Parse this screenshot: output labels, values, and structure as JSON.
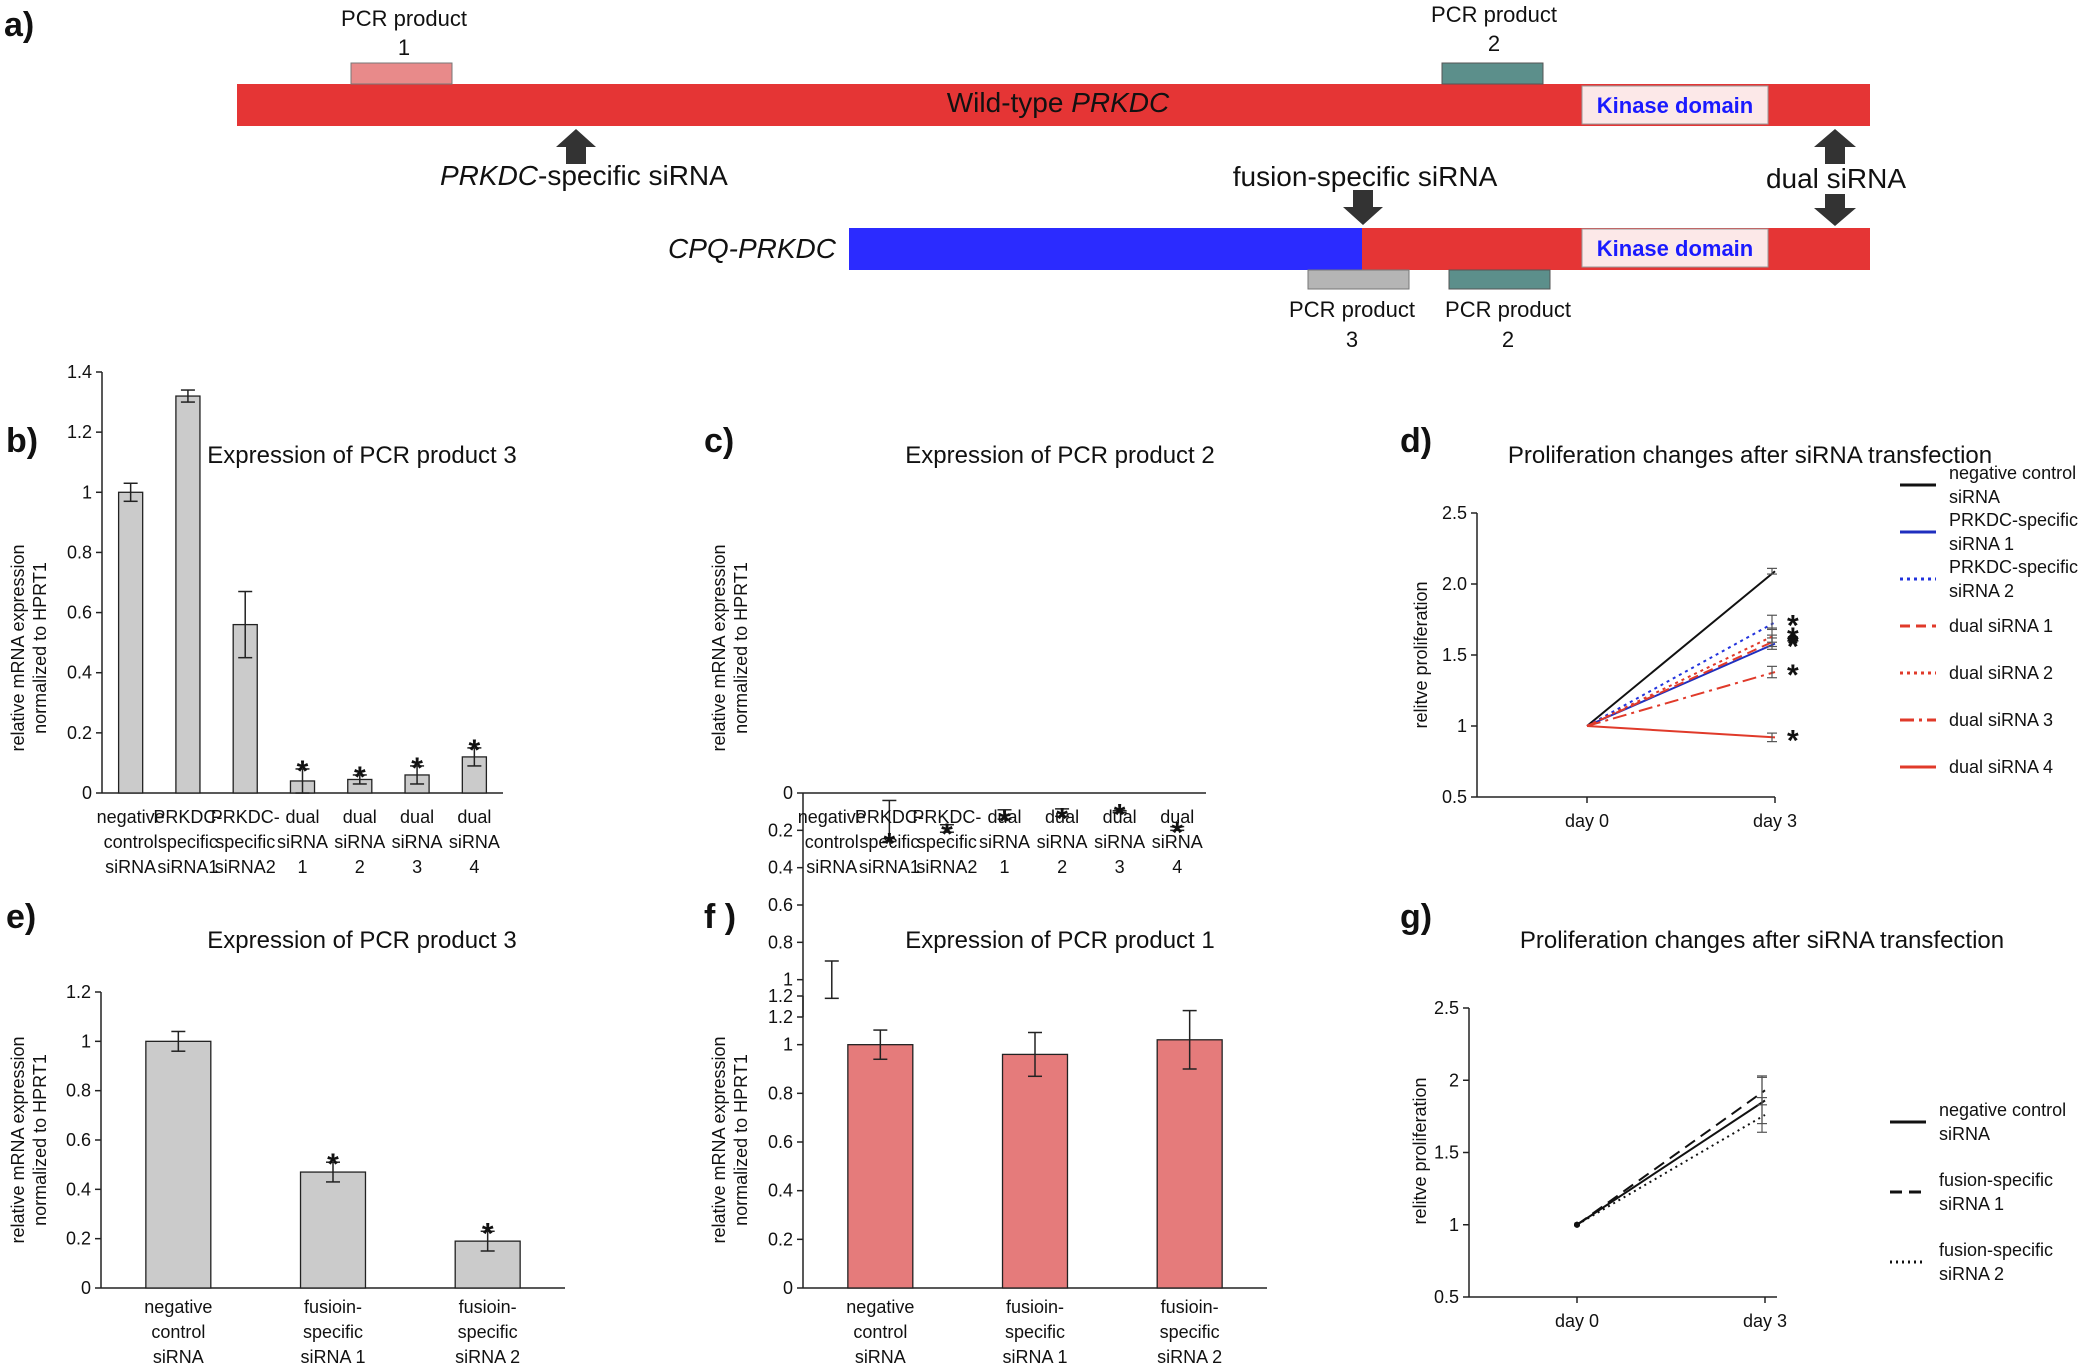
{
  "panel_a": {
    "label": "a)",
    "wildtype_pre": "Wild-type ",
    "wildtype_gene": "PRKDC",
    "fusion_name": "CPQ-PRKDC",
    "kinase_label": "Kinase domain",
    "prkdc_sirna_gene": "PRKDC",
    "prkdc_sirna_rest": "-specific siRNA",
    "fusion_sirna": "fusion-specific siRNA",
    "dual_sirna": "dual siRNA",
    "pcr1": [
      "PCR product",
      "1"
    ],
    "pcr2_top": [
      "PCR product",
      "2"
    ],
    "pcr3": [
      "PCR product",
      "3"
    ],
    "pcr2_bottom": [
      "PCR product",
      "2"
    ],
    "colors": {
      "wildtype": "#e53535",
      "fusion": "#2b2bff",
      "kinase_fill": "#fce8e8",
      "pcr1": "#e88a8a",
      "pcr2": "#5c8f8b",
      "pcr3": "#b5b5b5"
    }
  },
  "chart_data": [
    {
      "panel": "b)",
      "type": "bar",
      "title": "Expression of PCR product 3",
      "ylabel": [
        "relative mRNA expression",
        "normalized to HPRT1"
      ],
      "ylim": [
        0,
        1.4
      ],
      "yticks": [
        "0",
        "0.2",
        "0.4",
        "0.6",
        "0.8",
        "1",
        "1.2",
        "1.4"
      ],
      "color": "#cbcbcb",
      "categories": [
        [
          "negative",
          "control",
          "siRNA"
        ],
        [
          "PRKDC-",
          "specific",
          "siRNA1"
        ],
        [
          "PRKDC-",
          "specific",
          "siRNA2"
        ],
        [
          "dual",
          "siRNA",
          "1"
        ],
        [
          "dual",
          "siRNA",
          "2"
        ],
        [
          "dual",
          "siRNA",
          "3"
        ],
        [
          "dual",
          "siRNA",
          "4"
        ]
      ],
      "values": [
        1.0,
        1.32,
        0.56,
        0.04,
        0.045,
        0.06,
        0.12
      ],
      "errors": [
        0.03,
        0.02,
        0.11,
        0.04,
        0.015,
        0.03,
        0.03
      ],
      "significant": [
        false,
        false,
        false,
        true,
        true,
        true,
        true
      ],
      "star": "*"
    },
    {
      "panel": "c)",
      "type": "bar",
      "title": "Expression of  PCR product 2",
      "ylabel": [
        "relative mRNA expression",
        "normalized to HPRT1"
      ],
      "ylim": [
        0,
        1.2
      ],
      "yticks": [
        "0",
        "0.2",
        "0.4",
        "0.6",
        "0.8",
        "1",
        "1.2"
      ],
      "color": "#4a7d79",
      "categories": [
        [
          "negative",
          "control",
          "siRNA"
        ],
        [
          "PRKDC-",
          "specific",
          "siRNA1"
        ],
        [
          "PRKDC-",
          "specific",
          "siRNA2"
        ],
        [
          "dual",
          "siRNA",
          "1"
        ],
        [
          "dual",
          "siRNA",
          "2"
        ],
        [
          "dual",
          "siRNA",
          "3"
        ],
        [
          "dual",
          "siRNA",
          "4"
        ]
      ],
      "values": [
        1.0,
        0.15,
        0.19,
        0.115,
        0.105,
        0.1,
        0.19
      ],
      "errors": [
        0.1,
        0.11,
        0.02,
        0.025,
        0.02,
        0.005,
        0.01
      ],
      "significant": [
        false,
        true,
        true,
        true,
        true,
        true,
        true
      ],
      "star": "*"
    },
    {
      "panel": "d)",
      "type": "line",
      "title": "Proliferation changes after siRNA transfection",
      "ylabel": "relitve proliferation",
      "ylim": [
        0.5,
        2.5
      ],
      "yticks": [
        "0.5",
        "1",
        "1.5",
        "2.0",
        "2.5"
      ],
      "x": [
        "day 0",
        "day 3"
      ],
      "star": "*",
      "series": [
        {
          "name": [
            "negative control",
            "siRNA"
          ],
          "values": [
            1.0,
            2.09
          ],
          "err3": 0.02,
          "color": "#111111",
          "dash": "",
          "star": false
        },
        {
          "name": [
            "PRKDC-specific",
            "siRNA 1"
          ],
          "values": [
            1.0,
            1.58
          ],
          "err3": 0.04,
          "color": "#1f2fbf",
          "dash": "",
          "star": true
        },
        {
          "name": [
            "PRKDC-specific",
            "siRNA 2"
          ],
          "values": [
            1.0,
            1.73
          ],
          "err3": 0.05,
          "color": "#2233dd",
          "dash": "3 4",
          "star": true
        },
        {
          "name": [
            "dual siRNA 1"
          ],
          "values": [
            1.0,
            1.6
          ],
          "err3": 0.04,
          "color": "#e03a2a",
          "dash": "10 6",
          "star": true
        },
        {
          "name": [
            "dual siRNA 2"
          ],
          "values": [
            1.0,
            1.64
          ],
          "err3": 0.05,
          "color": "#e03a2a",
          "dash": "3 4",
          "star": true
        },
        {
          "name": [
            "dual siRNA 3"
          ],
          "values": [
            1.0,
            1.38
          ],
          "err3": 0.04,
          "color": "#e03a2a",
          "dash": "14 5 3 5",
          "star": true
        },
        {
          "name": [
            "dual siRNA 4"
          ],
          "values": [
            1.0,
            0.92
          ],
          "err3": 0.03,
          "color": "#e03a2a",
          "dash": "",
          "star": true
        }
      ]
    },
    {
      "panel": "e)",
      "type": "bar",
      "title": "Expression of PCR product 3",
      "ylabel": [
        "relative mRNA expression",
        "normalized to HPRT1"
      ],
      "ylim": [
        0,
        1.2
      ],
      "yticks": [
        "0",
        "0.2",
        "0.4",
        "0.6",
        "0.8",
        "1",
        "1.2"
      ],
      "color": "#cbcbcb",
      "categories": [
        [
          "negative",
          "control",
          "siRNA"
        ],
        [
          "fusioin-",
          "specific",
          "siRNA 1"
        ],
        [
          "fusioin-",
          "specific",
          "siRNA 2"
        ]
      ],
      "values": [
        1.0,
        0.47,
        0.19
      ],
      "errors": [
        0.04,
        0.04,
        0.04
      ],
      "significant": [
        false,
        true,
        true
      ],
      "star": "*"
    },
    {
      "panel": "f )",
      "type": "bar",
      "title": "Expression of  PCR product 1",
      "ylabel": [
        "relative mRNA expression",
        "normalized to HPRT1"
      ],
      "ylim": [
        0,
        1.2
      ],
      "yticks": [
        "0",
        "0.2",
        "0.4",
        "0.6",
        "0.8",
        "1",
        "1.2"
      ],
      "color": "#e57b7b",
      "categories": [
        [
          "negative",
          "control",
          "siRNA"
        ],
        [
          "fusioin-",
          "specific",
          "siRNA 1"
        ],
        [
          "fusioin-",
          "specific",
          "siRNA 2"
        ]
      ],
      "values": [
        1.0,
        0.96,
        1.02
      ],
      "errors": [
        0.06,
        0.09,
        0.12
      ],
      "significant": [
        false,
        false,
        false
      ],
      "star": "*"
    },
    {
      "panel": "g)",
      "type": "line",
      "title": "Proliferation changes after siRNA transfection",
      "ylabel": "relitve proliferation",
      "ylim": [
        0.5,
        2.5
      ],
      "yticks": [
        "0.5",
        "1",
        "1.5",
        "2",
        "2.5"
      ],
      "x": [
        "day 0",
        "day 3"
      ],
      "star": "*",
      "series": [
        {
          "name": [
            "negative control",
            "siRNA"
          ],
          "values": [
            1.0,
            1.86
          ],
          "err3": 0.16,
          "color": "#111111",
          "dash": "",
          "star": false
        },
        {
          "name": [
            "fusion-specific",
            "siRNA 1"
          ],
          "values": [
            1.0,
            1.93
          ],
          "err3": 0.1,
          "color": "#111111",
          "dash": "12 7",
          "star": false
        },
        {
          "name": [
            "fusion-specific",
            "siRNA 2"
          ],
          "values": [
            1.0,
            1.76
          ],
          "err3": 0.12,
          "color": "#111111",
          "dash": "2 4",
          "star": false
        }
      ]
    }
  ]
}
